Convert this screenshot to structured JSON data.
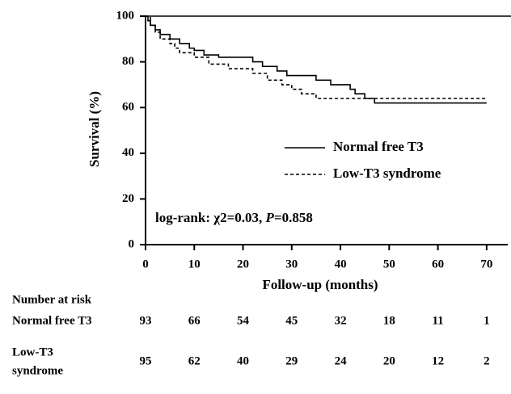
{
  "chart_data": {
    "type": "step",
    "ylabel": "Survival (%)",
    "xlabel": "Follow-up (months)",
    "xlim": [
      0,
      75
    ],
    "xticks": [
      0,
      10,
      20,
      30,
      40,
      50,
      60,
      70
    ],
    "ylim": [
      0,
      100
    ],
    "yticks": [
      0,
      20,
      40,
      60,
      80,
      100
    ],
    "series": [
      {
        "name": "Normal free T3",
        "color": "#000000",
        "dash": "solid",
        "x": [
          0,
          0.5,
          1,
          2,
          3,
          5,
          7,
          9,
          10,
          12,
          15,
          22,
          24,
          27,
          29,
          35,
          38,
          42,
          43,
          45,
          47,
          70
        ],
        "values": [
          100,
          98,
          96,
          94,
          92,
          90,
          88,
          86,
          85,
          83,
          82,
          80,
          78,
          76,
          74,
          72,
          70,
          68,
          66,
          64,
          62,
          62
        ]
      },
      {
        "name": "Low-T3 syndrome",
        "color": "#000000",
        "dash": "dashed",
        "x": [
          0,
          1,
          2,
          3,
          5,
          6,
          7,
          10,
          13,
          17,
          22,
          25,
          28,
          30,
          32,
          35,
          70
        ],
        "values": [
          100,
          96,
          93,
          90,
          88,
          86,
          84,
          82,
          79,
          77,
          75,
          72,
          70,
          68,
          66,
          64,
          64
        ]
      }
    ],
    "annotation": [
      "log-rank: χ2=0.03,  ",
      "P",
      "=0.858"
    ],
    "risk_table": {
      "title": "Number at risk",
      "rows": [
        {
          "label": [
            "Normal free T3"
          ],
          "values": [
            93,
            66,
            54,
            45,
            32,
            18,
            11,
            1
          ]
        },
        {
          "label": [
            "Low-T3",
            "syndrome"
          ],
          "values": [
            95,
            62,
            40,
            29,
            24,
            20,
            12,
            2
          ]
        }
      ]
    }
  }
}
